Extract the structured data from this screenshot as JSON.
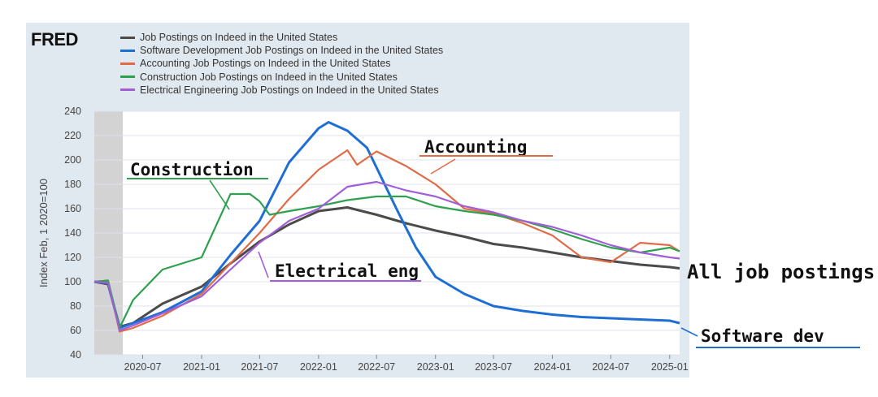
{
  "logo": "FRED",
  "colors": {
    "background_panel": "#e1e9f0",
    "plot_bg": "#ffffff",
    "grid": "#dfe3e8"
  },
  "chart_data": {
    "type": "line",
    "title": "",
    "xlabel": "",
    "ylabel": "Index Feb, 1 2020=100",
    "ylim": [
      40,
      240
    ],
    "yticks": [
      40,
      60,
      80,
      100,
      120,
      140,
      160,
      180,
      200,
      220,
      240
    ],
    "xticks": [
      "2020-07",
      "2021-01",
      "2021-07",
      "2022-01",
      "2022-07",
      "2023-01",
      "2023-07",
      "2024-01",
      "2024-07",
      "2025-01"
    ],
    "x_range": [
      "2020-02-01",
      "2025-02-01"
    ],
    "shaded_recession": [
      "2020-02-01",
      "2020-04-30"
    ],
    "grid": true,
    "legend_position": "top",
    "series": [
      {
        "name": "Job Postings on Indeed in the United States",
        "color": "#4b4b4b",
        "x": [
          "2020-02-01",
          "2020-03-15",
          "2020-04-20",
          "2020-06-01",
          "2020-09-01",
          "2021-01-01",
          "2021-04-01",
          "2021-07-01",
          "2021-10-01",
          "2022-01-01",
          "2022-04-01",
          "2022-07-01",
          "2022-10-01",
          "2023-01-01",
          "2023-04-01",
          "2023-07-01",
          "2023-10-01",
          "2024-01-01",
          "2024-04-01",
          "2024-07-01",
          "2024-10-01",
          "2025-01-01",
          "2025-02-01"
        ],
        "values": [
          100,
          98,
          63,
          66,
          82,
          96,
          115,
          133,
          147,
          158,
          161,
          155,
          148,
          142,
          137,
          131,
          128,
          124,
          120,
          117,
          114,
          112,
          111
        ]
      },
      {
        "name": "Software Development Job Postings on Indeed in the United States",
        "color": "#1f6ed4",
        "x": [
          "2020-02-01",
          "2020-03-15",
          "2020-04-20",
          "2020-06-01",
          "2020-09-01",
          "2021-01-01",
          "2021-04-01",
          "2021-07-01",
          "2021-10-01",
          "2022-01-01",
          "2022-02-01",
          "2022-04-01",
          "2022-06-01",
          "2022-09-01",
          "2022-11-01",
          "2023-01-01",
          "2023-04-01",
          "2023-07-01",
          "2023-10-01",
          "2024-01-01",
          "2024-04-01",
          "2024-07-01",
          "2024-10-01",
          "2025-01-01",
          "2025-02-01"
        ],
        "values": [
          100,
          99,
          62,
          66,
          75,
          92,
          122,
          150,
          198,
          226,
          231,
          224,
          210,
          160,
          128,
          104,
          90,
          80,
          76,
          73,
          71,
          70,
          69,
          68,
          66
        ]
      },
      {
        "name": "Accounting Job Postings on Indeed in the United States",
        "color": "#e06b46",
        "x": [
          "2020-02-01",
          "2020-03-15",
          "2020-04-20",
          "2020-06-01",
          "2020-09-01",
          "2021-01-01",
          "2021-04-01",
          "2021-07-01",
          "2021-10-01",
          "2022-01-01",
          "2022-04-01",
          "2022-05-01",
          "2022-07-01",
          "2022-10-01",
          "2023-01-01",
          "2023-04-01",
          "2023-07-01",
          "2023-10-01",
          "2024-01-01",
          "2024-04-01",
          "2024-07-01",
          "2024-10-01",
          "2025-01-01",
          "2025-02-01"
        ],
        "values": [
          100,
          101,
          59,
          62,
          72,
          90,
          115,
          140,
          168,
          192,
          208,
          196,
          207,
          195,
          180,
          160,
          156,
          148,
          138,
          120,
          116,
          132,
          130,
          125
        ]
      },
      {
        "name": "Construction Job Postings on Indeed in the United States",
        "color": "#2ea04f",
        "x": [
          "2020-02-01",
          "2020-03-15",
          "2020-04-20",
          "2020-06-01",
          "2020-09-01",
          "2021-01-01",
          "2021-04-01",
          "2021-06-01",
          "2021-07-01",
          "2021-08-01",
          "2021-10-01",
          "2022-01-01",
          "2022-04-01",
          "2022-07-01",
          "2022-10-01",
          "2023-01-01",
          "2023-04-01",
          "2023-07-01",
          "2023-10-01",
          "2024-01-01",
          "2024-04-01",
          "2024-07-01",
          "2024-10-01",
          "2025-01-01",
          "2025-02-01"
        ],
        "values": [
          100,
          101,
          62,
          85,
          110,
          120,
          172,
          172,
          166,
          155,
          158,
          162,
          167,
          170,
          170,
          162,
          158,
          155,
          150,
          143,
          135,
          128,
          124,
          128,
          125
        ]
      },
      {
        "name": "Electrical Engineering Job Postings on Indeed in the United States",
        "color": "#a05fd6",
        "x": [
          "2020-02-01",
          "2020-03-15",
          "2020-04-20",
          "2020-06-01",
          "2020-09-01",
          "2021-01-01",
          "2021-04-01",
          "2021-07-01",
          "2021-10-01",
          "2022-01-01",
          "2022-04-01",
          "2022-07-01",
          "2022-10-01",
          "2023-01-01",
          "2023-04-01",
          "2023-07-01",
          "2023-10-01",
          "2024-01-01",
          "2024-04-01",
          "2024-07-01",
          "2024-10-01",
          "2025-01-01",
          "2025-02-01"
        ],
        "values": [
          100,
          99,
          60,
          64,
          74,
          88,
          110,
          132,
          150,
          160,
          178,
          182,
          175,
          170,
          162,
          157,
          150,
          145,
          138,
          130,
          124,
          120,
          119
        ]
      }
    ],
    "annotations": [
      {
        "text": "Construction",
        "color": "#2ea04f"
      },
      {
        "text": "Accounting",
        "color": "#e06b46"
      },
      {
        "text": "Electrical eng",
        "color": "#a05fd6"
      },
      {
        "text": "All job postings",
        "color": "#111111"
      },
      {
        "text": "Software dev",
        "color": "#1f6ed4"
      }
    ]
  }
}
